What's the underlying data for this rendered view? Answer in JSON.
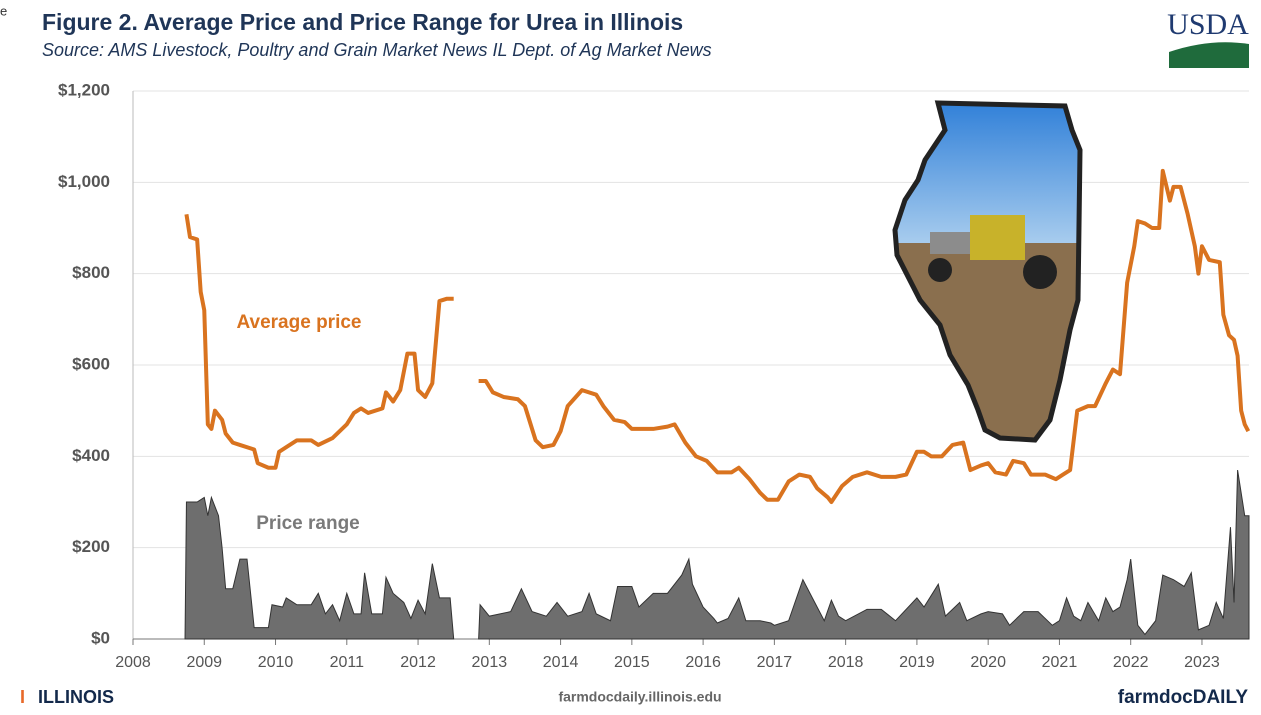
{
  "corner_text": "e",
  "chart_data": {
    "type": "line",
    "title": "Figure 2. Average Price and Price Range for Urea in Illinois",
    "subtitle": "Source: AMS Livestock, Poultry and Grain Market News IL Dept. of Ag Market News",
    "logo": "USDA",
    "footer_left": "ILLINOIS",
    "footer_center": "farmdocdaily.illinois.edu",
    "footer_right": "farmdocDAILY",
    "xlim": [
      2008,
      2023.66
    ],
    "xticks": [
      2008,
      2009,
      2010,
      2011,
      2012,
      2013,
      2014,
      2015,
      2016,
      2017,
      2018,
      2019,
      2020,
      2021,
      2022,
      2023
    ],
    "ylim": [
      0,
      1200
    ],
    "yticks": [
      {
        "value": 0,
        "label": "$0"
      },
      {
        "value": 200,
        "label": "$200"
      },
      {
        "value": 400,
        "label": "$400"
      },
      {
        "value": 600,
        "label": "$600"
      },
      {
        "value": 800,
        "label": "$800"
      },
      {
        "value": 1000,
        "label": "$1,000"
      },
      {
        "value": 1200,
        "label": "$1,200"
      }
    ],
    "grid": true,
    "series": [
      {
        "name": "Average price",
        "kind": "line",
        "color": "#d9731f",
        "x": [
          2008.75,
          2008.8,
          2008.9,
          2008.95,
          2009.0,
          2009.05,
          2009.1,
          2009.15,
          2009.25,
          2009.3,
          2009.4,
          2009.5,
          2009.7,
          2009.75,
          2009.9,
          2010.0,
          2010.05,
          2010.15,
          2010.3,
          2010.5,
          2010.6,
          2010.8,
          2010.9,
          2011.0,
          2011.1,
          2011.2,
          2011.3,
          2011.5,
          2011.55,
          2011.65,
          2011.75,
          2011.85,
          2011.95,
          2012.0,
          2012.1,
          2012.2,
          2012.3,
          2012.4,
          2012.5,
          2012.65,
          2012.85,
          2012.95,
          2013.05,
          2013.2,
          2013.4,
          2013.5,
          2013.65,
          2013.75,
          2013.9,
          2014.0,
          2014.1,
          2014.3,
          2014.5,
          2014.6,
          2014.75,
          2014.9,
          2015.0,
          2015.3,
          2015.5,
          2015.6,
          2015.75,
          2015.9,
          2016.05,
          2016.2,
          2016.4,
          2016.5,
          2016.65,
          2016.8,
          2016.9,
          2017.05,
          2017.2,
          2017.35,
          2017.5,
          2017.6,
          2017.75,
          2017.8,
          2017.95,
          2018.1,
          2018.3,
          2018.5,
          2018.7,
          2018.85,
          2019.0,
          2019.1,
          2019.2,
          2019.35,
          2019.5,
          2019.65,
          2019.75,
          2019.9,
          2020.0,
          2020.1,
          2020.25,
          2020.35,
          2020.5,
          2020.6,
          2020.8,
          2020.95,
          2021.05,
          2021.15,
          2021.25,
          2021.4,
          2021.5,
          2021.65,
          2021.75,
          2021.85,
          2021.95,
          2022.05,
          2022.1,
          2022.2,
          2022.3,
          2022.4,
          2022.45,
          2022.55,
          2022.6,
          2022.7,
          2022.8,
          2022.9,
          2022.95,
          2023.0,
          2023.1,
          2023.25,
          2023.3,
          2023.38,
          2023.45,
          2023.5,
          2023.55,
          2023.6,
          2023.65
        ],
        "values": [
          930,
          880,
          875,
          760,
          720,
          470,
          460,
          500,
          480,
          450,
          430,
          425,
          415,
          385,
          375,
          375,
          410,
          420,
          435,
          435,
          425,
          440,
          455,
          470,
          495,
          505,
          495,
          505,
          540,
          520,
          545,
          625,
          625,
          545,
          530,
          560,
          740,
          745,
          745,
          null,
          565,
          565,
          540,
          530,
          525,
          510,
          435,
          420,
          425,
          455,
          510,
          545,
          535,
          510,
          480,
          475,
          460,
          460,
          465,
          470,
          430,
          400,
          390,
          365,
          365,
          375,
          350,
          320,
          305,
          305,
          345,
          360,
          355,
          330,
          310,
          300,
          335,
          355,
          365,
          355,
          355,
          360,
          410,
          410,
          400,
          400,
          425,
          430,
          370,
          380,
          385,
          365,
          360,
          390,
          385,
          360,
          360,
          350,
          360,
          370,
          500,
          510,
          510,
          560,
          590,
          580,
          780,
          860,
          915,
          910,
          900,
          900,
          1025,
          960,
          990,
          990,
          930,
          860,
          800,
          860,
          830,
          825,
          710,
          665,
          655,
          620,
          500,
          470,
          455
        ]
      },
      {
        "name": "Price range",
        "kind": "area",
        "color": "#6e6e6e",
        "x": [
          2008.73,
          2008.75,
          2008.9,
          2009.0,
          2009.05,
          2009.1,
          2009.2,
          2009.25,
          2009.3,
          2009.4,
          2009.5,
          2009.6,
          2009.7,
          2009.9,
          2009.95,
          2010.1,
          2010.15,
          2010.3,
          2010.5,
          2010.6,
          2010.7,
          2010.8,
          2010.9,
          2011.0,
          2011.1,
          2011.2,
          2011.25,
          2011.35,
          2011.5,
          2011.55,
          2011.65,
          2011.8,
          2011.9,
          2012.0,
          2012.1,
          2012.2,
          2012.3,
          2012.45,
          2012.5,
          2012.65,
          2012.85,
          2012.87,
          2013.0,
          2013.3,
          2013.45,
          2013.6,
          2013.8,
          2013.95,
          2014.1,
          2014.3,
          2014.4,
          2014.5,
          2014.7,
          2014.8,
          2015.0,
          2015.1,
          2015.3,
          2015.5,
          2015.7,
          2015.8,
          2015.85,
          2016.0,
          2016.15,
          2016.2,
          2016.35,
          2016.5,
          2016.6,
          2016.8,
          2016.95,
          2017.0,
          2017.2,
          2017.4,
          2017.5,
          2017.7,
          2017.8,
          2017.9,
          2018.0,
          2018.3,
          2018.5,
          2018.7,
          2019.0,
          2019.1,
          2019.3,
          2019.4,
          2019.6,
          2019.7,
          2019.9,
          2020.0,
          2020.2,
          2020.3,
          2020.5,
          2020.7,
          2020.9,
          2021.0,
          2021.1,
          2021.2,
          2021.3,
          2021.4,
          2021.55,
          2021.65,
          2021.75,
          2021.85,
          2021.95,
          2022.0,
          2022.1,
          2022.2,
          2022.35,
          2022.45,
          2022.6,
          2022.75,
          2022.85,
          2022.95,
          2023.1,
          2023.2,
          2023.3,
          2023.4,
          2023.45,
          2023.5,
          2023.6,
          2023.66
        ],
        "values": [
          0,
          300,
          300,
          310,
          270,
          310,
          270,
          200,
          110,
          110,
          175,
          175,
          25,
          25,
          75,
          70,
          90,
          75,
          75,
          100,
          55,
          75,
          40,
          100,
          55,
          55,
          145,
          55,
          55,
          135,
          100,
          80,
          45,
          85,
          55,
          165,
          90,
          90,
          0,
          null,
          0,
          75,
          50,
          60,
          110,
          60,
          50,
          80,
          50,
          60,
          100,
          55,
          40,
          115,
          115,
          70,
          100,
          100,
          140,
          175,
          120,
          70,
          45,
          35,
          45,
          90,
          40,
          40,
          35,
          30,
          40,
          130,
          100,
          40,
          85,
          50,
          40,
          65,
          65,
          40,
          90,
          70,
          120,
          50,
          80,
          40,
          55,
          60,
          55,
          30,
          60,
          60,
          30,
          40,
          90,
          50,
          40,
          80,
          40,
          90,
          60,
          70,
          130,
          175,
          30,
          10,
          40,
          140,
          130,
          115,
          145,
          20,
          30,
          80,
          45,
          245,
          80,
          370,
          270,
          270
        ]
      }
    ]
  }
}
